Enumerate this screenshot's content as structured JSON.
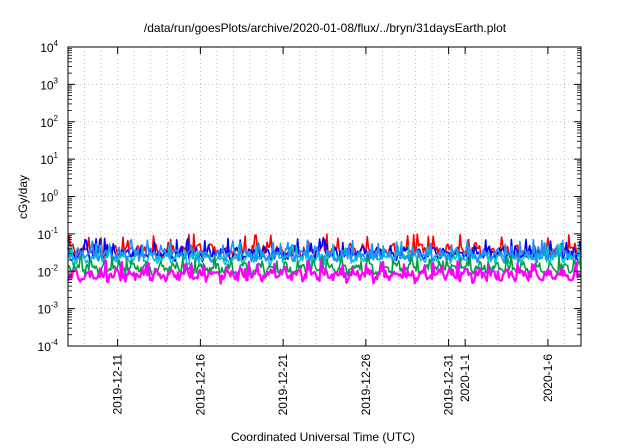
{
  "chart_data": {
    "type": "line",
    "title": "/data/run/goesPlots/archive/2020-01-08/flux/../bryn/31daysEarth.plot",
    "xlabel": "Coordinated Universal Time (UTC)",
    "ylabel": "cGy/day",
    "yscale": "log",
    "ylim": [
      0.0001,
      10000
    ],
    "xlim": [
      "2019-12-08",
      "2020-01-08"
    ],
    "y_ticks": [
      {
        "base": "10",
        "exp": "-4",
        "value": 0.0001
      },
      {
        "base": "10",
        "exp": "-3",
        "value": 0.001
      },
      {
        "base": "10",
        "exp": "-2",
        "value": 0.01
      },
      {
        "base": "10",
        "exp": "-1",
        "value": 0.1
      },
      {
        "base": "10",
        "exp": "0",
        "value": 1
      },
      {
        "base": "10",
        "exp": "1",
        "value": 10
      },
      {
        "base": "10",
        "exp": "2",
        "value": 100
      },
      {
        "base": "10",
        "exp": "3",
        "value": 1000
      },
      {
        "base": "10",
        "exp": "4",
        "value": 10000
      }
    ],
    "x_ticks": [
      {
        "label": "2019-12-11",
        "date": "2019-12-11"
      },
      {
        "label": "2019-12-16",
        "date": "2019-12-16"
      },
      {
        "label": "2019-12-21",
        "date": "2019-12-21"
      },
      {
        "label": "2019-12-26",
        "date": "2019-12-26"
      },
      {
        "label": "2019-12-31",
        "date": "2019-12-31"
      },
      {
        "label": "2020-1-1",
        "date": "2020-01-01"
      },
      {
        "label": "2020-1-6",
        "date": "2020-01-06"
      }
    ],
    "grid": true,
    "series": [
      {
        "color": "#ff0000",
        "typical": 0.036,
        "peaks": 0.09
      },
      {
        "color": "#0000ff",
        "typical": 0.03,
        "peaks": 0.07
      },
      {
        "color": "#00c8c8",
        "typical": 0.022,
        "peaks": 0.05
      },
      {
        "color": "#1e90ff",
        "typical": 0.027,
        "peaks": 0.065
      },
      {
        "color": "#00a040",
        "typical": 0.012,
        "peaks": 0.025
      },
      {
        "color": "#ff00ff",
        "typical": 0.008,
        "peaks": 0.018
      }
    ]
  }
}
